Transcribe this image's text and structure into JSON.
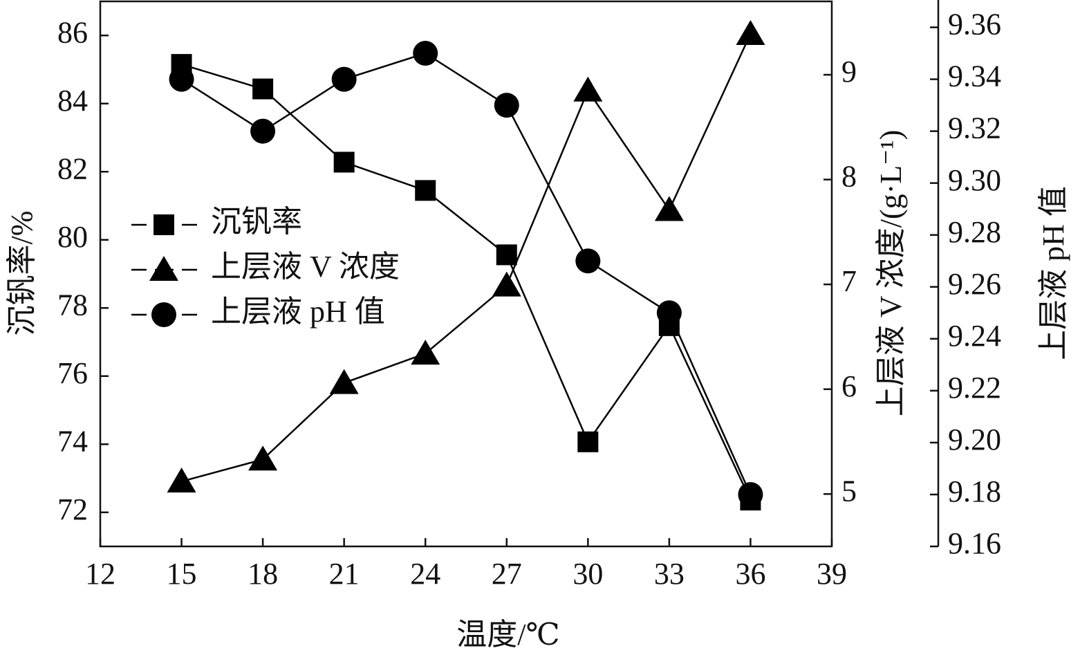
{
  "chart_data": {
    "type": "line",
    "x_label": "温度/℃",
    "y_label": "沉钒率/%",
    "y2_label": "上层液 V 浓度/(g·L⁻¹)",
    "y3_label": "上层液 pH 值",
    "x": [
      15,
      18,
      21,
      24,
      27,
      30,
      33,
      36
    ],
    "series": [
      {
        "name": "沉钒率",
        "color": "#000000",
        "marker": "square",
        "axis": "y",
        "values": [
          85.15,
          84.43,
          82.28,
          81.45,
          79.56,
          74.07,
          77.48,
          72.36
        ]
      },
      {
        "name": "上层液 V 浓度",
        "color": "#000000",
        "marker": "triangle",
        "axis": "y2",
        "values": [
          5.12,
          5.33,
          6.06,
          6.34,
          6.99,
          8.85,
          7.71,
          9.39
        ]
      },
      {
        "name": "上层液 pH 值",
        "color": "#000000",
        "marker": "circle",
        "axis": "y3",
        "values": [
          9.34,
          9.32,
          9.34,
          9.35,
          9.33,
          9.27,
          9.25,
          9.18
        ]
      }
    ],
    "xlim": [
      12,
      39
    ],
    "xticks": [
      12,
      15,
      18,
      21,
      24,
      27,
      30,
      33,
      36,
      39
    ],
    "ylim": [
      71,
      87
    ],
    "yticks": [
      72,
      74,
      76,
      78,
      80,
      82,
      84,
      86
    ],
    "y2lim": [
      4.5,
      9.7
    ],
    "y2ticks": [
      5,
      6,
      7,
      8,
      9
    ],
    "y3lim": [
      9.16,
      9.37
    ],
    "y3ticks": [
      9.16,
      9.18,
      {
        "value": 9.2,
        "label": "9.20"
      },
      9.22,
      9.24,
      9.26,
      9.28,
      {
        "value": 9.3,
        "label": "9.30"
      },
      9.32,
      9.34,
      9.36
    ],
    "legend": "left",
    "grid": false
  }
}
